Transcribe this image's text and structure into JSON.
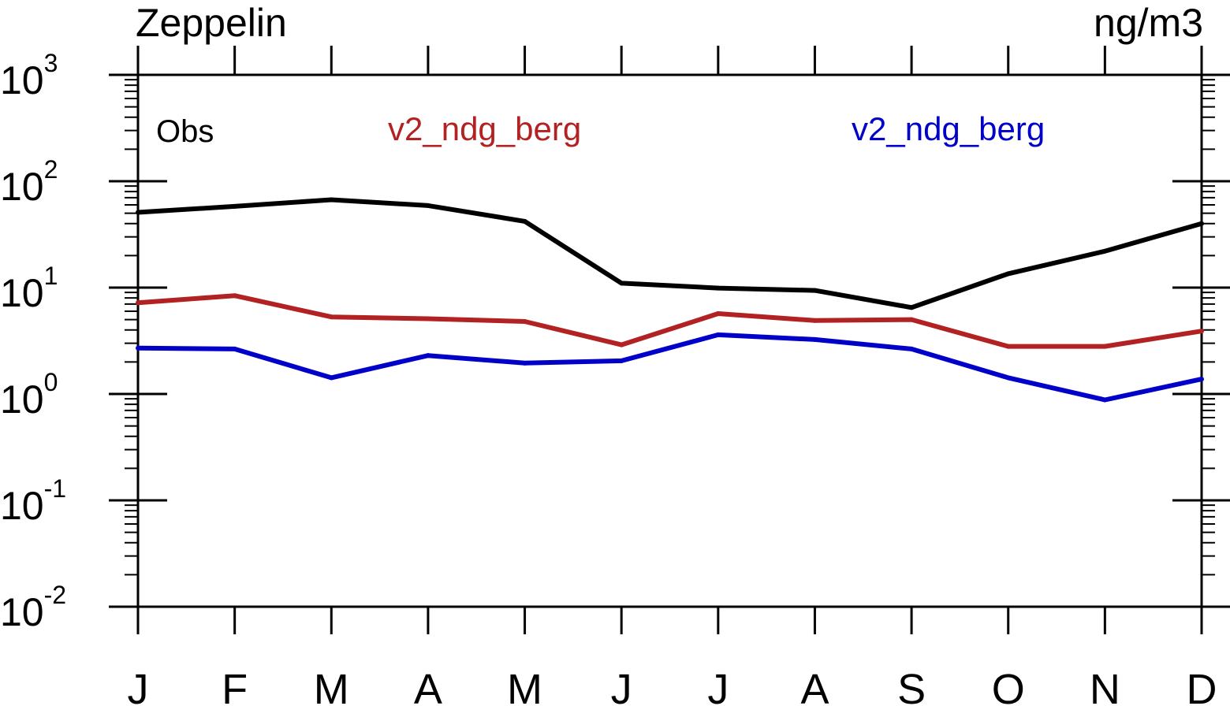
{
  "chart_data": {
    "type": "line",
    "title_left": "Zeppelin",
    "title_right": "ng/m3",
    "xlabel": "",
    "ylabel": "",
    "yscale": "log",
    "ylim": [
      0.01,
      1000
    ],
    "y_ticks": [
      {
        "base": "10",
        "exp": "-2",
        "value": 0.01
      },
      {
        "base": "10",
        "exp": "-1",
        "value": 0.1
      },
      {
        "base": "10",
        "exp": "0",
        "value": 1
      },
      {
        "base": "10",
        "exp": "1",
        "value": 10
      },
      {
        "base": "10",
        "exp": "2",
        "value": 100
      },
      {
        "base": "10",
        "exp": "3",
        "value": 1000
      }
    ],
    "categories": [
      "J",
      "F",
      "M",
      "A",
      "M",
      "J",
      "J",
      "A",
      "S",
      "O",
      "N",
      "D"
    ],
    "series": [
      {
        "name": "Obs",
        "color": "#000000",
        "values": [
          51,
          58,
          67,
          59,
          42,
          11,
          9.9,
          9.4,
          6.5,
          13.5,
          22,
          40
        ]
      },
      {
        "name": "v2_ndg_berg",
        "color": "#b22222",
        "values": [
          7.2,
          8.4,
          5.3,
          5.1,
          4.8,
          2.9,
          5.7,
          4.9,
          5.0,
          2.8,
          2.8,
          3.9
        ]
      },
      {
        "name": "v2_ndg_berg",
        "color": "#0000c8",
        "values": [
          2.7,
          2.65,
          1.42,
          2.3,
          1.95,
          2.05,
          3.6,
          3.25,
          2.65,
          1.42,
          0.88,
          1.38
        ]
      }
    ]
  }
}
